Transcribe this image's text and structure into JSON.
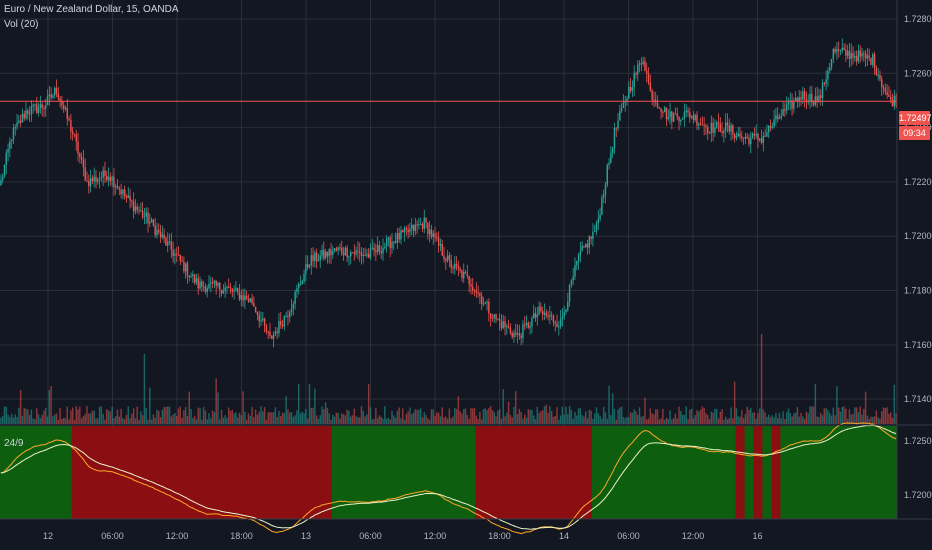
{
  "header": {
    "symbol_title": "Euro / New Zealand Dollar, 15, OANDA",
    "volume_label": "Vol (20)",
    "indicator_label": "24/9"
  },
  "price_axis": {
    "ticks": [
      "1.72800",
      "1.72600",
      "1.72400",
      "1.72200",
      "1.72000",
      "1.71800",
      "1.71600",
      "1.71400"
    ],
    "current_price": "1.72497",
    "countdown": "09:34"
  },
  "time_axis": {
    "ticks": [
      "12",
      "06:00",
      "12:00",
      "18:00",
      "13",
      "06:00",
      "12:00",
      "18:00",
      "14",
      "06:00",
      "12:00",
      "16"
    ]
  },
  "indicator_axis": {
    "ticks": [
      "1.72500",
      "1.72000"
    ]
  },
  "colors": {
    "background": "#131722",
    "grid": "#2a2e39",
    "up": "#26a69a",
    "down": "#ef5350",
    "bull_zone": "#0e5e10",
    "bear_zone": "#8b0f12",
    "fast_line": "#ffa726",
    "slow_line": "#e8f5c8"
  },
  "chart_data": {
    "type": "candlestick",
    "title": "Euro / New Zealand Dollar, 15, OANDA",
    "y_range": [
      1.7136,
      1.7287
    ],
    "current_price": 1.72497,
    "anchor_closes": [
      [
        0,
        1.722
      ],
      [
        6,
        1.7237
      ],
      [
        14,
        1.7246
      ],
      [
        24,
        1.7248
      ],
      [
        31,
        1.7254
      ],
      [
        40,
        1.7238
      ],
      [
        48,
        1.722
      ],
      [
        60,
        1.7223
      ],
      [
        70,
        1.7214
      ],
      [
        82,
        1.7206
      ],
      [
        95,
        1.7195
      ],
      [
        110,
        1.7182
      ],
      [
        125,
        1.7181
      ],
      [
        140,
        1.7176
      ],
      [
        150,
        1.7162
      ],
      [
        160,
        1.7172
      ],
      [
        172,
        1.7191
      ],
      [
        188,
        1.7195
      ],
      [
        205,
        1.7193
      ],
      [
        220,
        1.7199
      ],
      [
        236,
        1.7205
      ],
      [
        250,
        1.719
      ],
      [
        262,
        1.7183
      ],
      [
        275,
        1.717
      ],
      [
        288,
        1.7163
      ],
      [
        300,
        1.7172
      ],
      [
        312,
        1.7168
      ],
      [
        322,
        1.7192
      ],
      [
        332,
        1.7203
      ],
      [
        342,
        1.7238
      ],
      [
        350,
        1.7254
      ],
      [
        358,
        1.7266
      ],
      [
        362,
        1.7253
      ],
      [
        372,
        1.7244
      ],
      [
        384,
        1.7245
      ],
      [
        394,
        1.724
      ],
      [
        404,
        1.724
      ],
      [
        414,
        1.7236
      ],
      [
        424,
        1.7236
      ],
      [
        434,
        1.7244
      ],
      [
        446,
        1.7252
      ],
      [
        456,
        1.725
      ],
      [
        464,
        1.7268
      ],
      [
        474,
        1.7267
      ],
      [
        486,
        1.7265
      ],
      [
        495,
        1.725
      ]
    ],
    "zones": [
      {
        "signal": "bull",
        "start": 0.0,
        "end": 0.08
      },
      {
        "signal": "bear",
        "start": 0.08,
        "end": 0.37
      },
      {
        "signal": "bull",
        "start": 0.37,
        "end": 0.53
      },
      {
        "signal": "bear",
        "start": 0.53,
        "end": 0.66
      },
      {
        "signal": "bull",
        "start": 0.66,
        "end": 0.82
      },
      {
        "signal": "bear",
        "start": 0.82,
        "end": 0.83
      },
      {
        "signal": "bull",
        "start": 0.83,
        "end": 0.84
      },
      {
        "signal": "bear",
        "start": 0.84,
        "end": 0.85
      },
      {
        "signal": "bull",
        "start": 0.85,
        "end": 0.86
      },
      {
        "signal": "bear",
        "start": 0.86,
        "end": 0.87
      },
      {
        "signal": "bull",
        "start": 1.0,
        "end": 1.0
      }
    ]
  }
}
